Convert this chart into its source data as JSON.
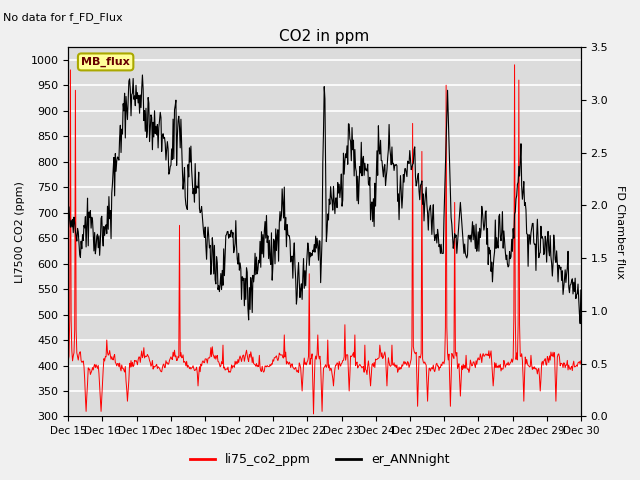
{
  "title": "CO2 in ppm",
  "top_left_note": "No data for f_FD_Flux",
  "ylabel_left": "LI7500 CO2 (ppm)",
  "ylabel_right": "FD Chamber flux",
  "ylim_left": [
    300,
    1025
  ],
  "ylim_right": [
    0.0,
    3.5
  ],
  "yticks_left": [
    300,
    350,
    400,
    450,
    500,
    550,
    600,
    650,
    700,
    750,
    800,
    850,
    900,
    950,
    1000
  ],
  "yticks_right": [
    0.0,
    0.5,
    1.0,
    1.5,
    2.0,
    2.5,
    3.0,
    3.5
  ],
  "xtick_labels": [
    "Dec 15",
    "Dec 16",
    "Dec 17",
    "Dec 18",
    "Dec 19",
    "Dec 20",
    "Dec 21",
    "Dec 22",
    "Dec 23",
    "Dec 24",
    "Dec 25",
    "Dec 26",
    "Dec 27",
    "Dec 28",
    "Dec 29",
    "Dec 30"
  ],
  "legend_entries": [
    "li75_co2_ppm",
    "er_ANNnight"
  ],
  "line1_color": "#ff0000",
  "line2_color": "#000000",
  "mb_flux_box_facecolor": "#ffff99",
  "mb_flux_box_edgecolor": "#aaa800",
  "plot_bg_color": "#dcdcdc",
  "grid_color": "#ffffff",
  "fig_bg_color": "#f0f0f0"
}
